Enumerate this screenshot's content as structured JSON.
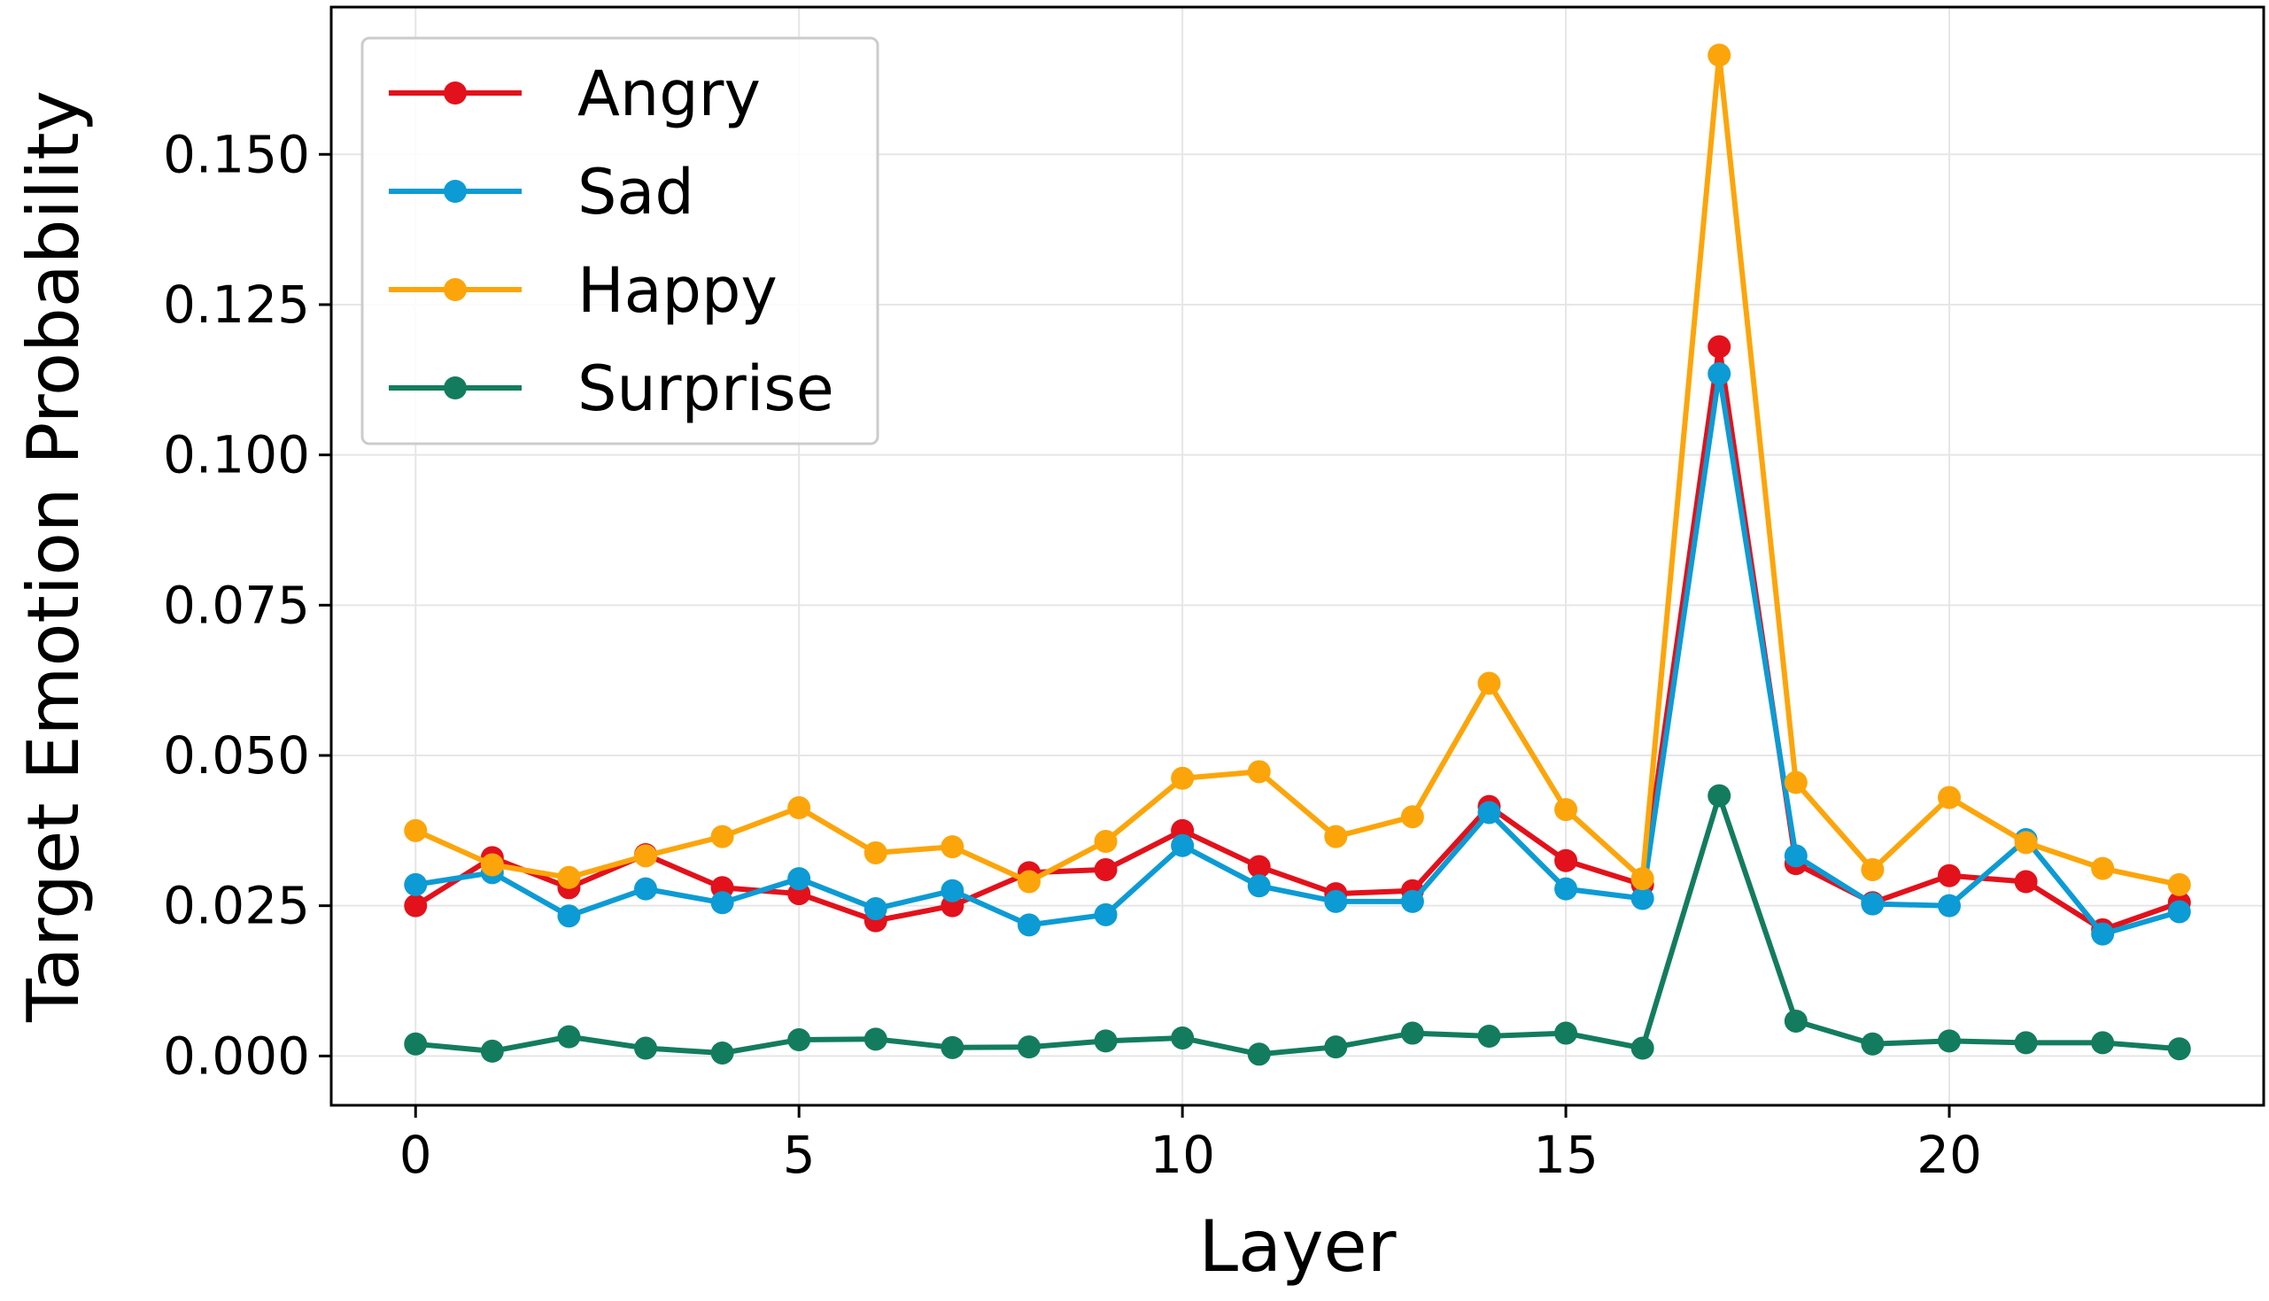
{
  "chart_data": {
    "type": "line",
    "title": "",
    "xlabel": "Layer",
    "ylabel": "Target Emotion Probability",
    "xlim": [
      -1.1,
      24.1
    ],
    "ylim": [
      -0.0082,
      0.1745
    ],
    "xticks": [
      0,
      5,
      10,
      15,
      20
    ],
    "xtick_labels": [
      "0",
      "5",
      "10",
      "15",
      "20"
    ],
    "yticks": [
      0.0,
      0.025,
      0.05,
      0.075,
      0.1,
      0.125,
      0.15
    ],
    "ytick_labels": [
      "0.000",
      "0.025",
      "0.050",
      "0.075",
      "0.100",
      "0.125",
      "0.150"
    ],
    "grid": true,
    "legend_position": "top-left",
    "x": [
      0,
      1,
      2,
      3,
      4,
      5,
      6,
      7,
      8,
      9,
      10,
      11,
      12,
      13,
      14,
      15,
      16,
      17,
      18,
      19,
      20,
      21,
      22,
      23
    ],
    "series": [
      {
        "name": "Angry",
        "color": "#e3111b",
        "values": [
          0.025,
          0.033,
          0.028,
          0.0335,
          0.028,
          0.027,
          0.0225,
          0.025,
          0.0305,
          0.031,
          0.0375,
          0.0315,
          0.027,
          0.0275,
          0.0415,
          0.0325,
          0.0285,
          0.118,
          0.032,
          0.0255,
          0.03,
          0.029,
          0.021,
          0.0255
        ]
      },
      {
        "name": "Sad",
        "color": "#0c9bd4",
        "values": [
          0.0285,
          0.0305,
          0.0233,
          0.0278,
          0.0255,
          0.0295,
          0.0245,
          0.0275,
          0.0218,
          0.0235,
          0.035,
          0.0283,
          0.0257,
          0.0257,
          0.0405,
          0.0278,
          0.0262,
          0.1135,
          0.0333,
          0.0253,
          0.025,
          0.036,
          0.0203,
          0.024
        ]
      },
      {
        "name": "Happy",
        "color": "#fca50a",
        "values": [
          0.0375,
          0.0318,
          0.0297,
          0.0333,
          0.0365,
          0.0413,
          0.0338,
          0.0348,
          0.029,
          0.0357,
          0.0462,
          0.0473,
          0.0365,
          0.0398,
          0.062,
          0.041,
          0.0295,
          0.1665,
          0.0455,
          0.031,
          0.043,
          0.0355,
          0.0312,
          0.0285
        ]
      },
      {
        "name": "Surprise",
        "color": "#137c5e",
        "values": [
          0.002,
          0.0008,
          0.0032,
          0.0013,
          0.0005,
          0.0027,
          0.0028,
          0.0014,
          0.0015,
          0.0025,
          0.003,
          0.0003,
          0.0015,
          0.0038,
          0.0033,
          0.0038,
          0.0013,
          0.0433,
          0.0058,
          0.002,
          0.0025,
          0.0022,
          0.0022,
          0.0012
        ]
      }
    ]
  }
}
